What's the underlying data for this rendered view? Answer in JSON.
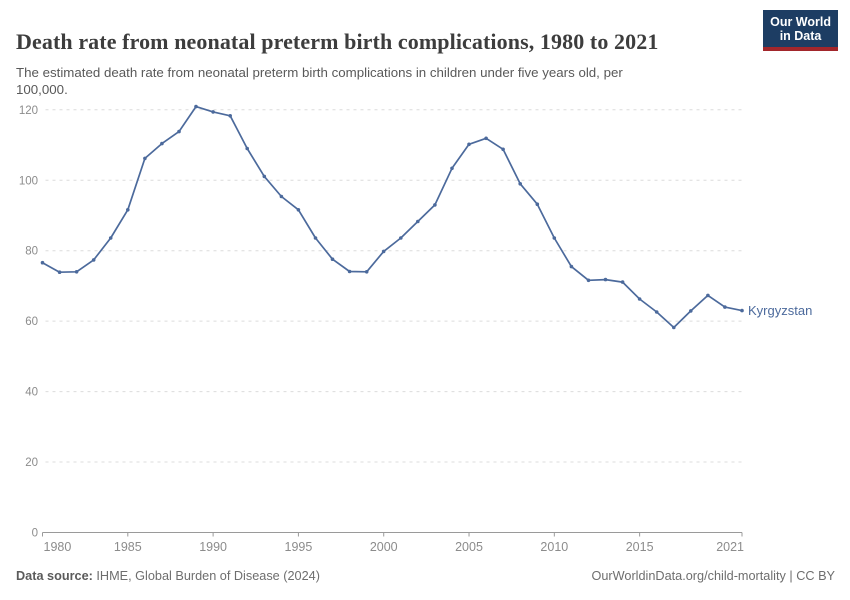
{
  "header": {
    "title": "Death rate from neonatal preterm birth complications, 1980 to 2021",
    "subtitle_line1": "The estimated death rate from neonatal preterm birth complications in children under five years old, per",
    "subtitle_line2": "100,000.",
    "logo": {
      "line1": "Our World",
      "line2": "in Data",
      "bg_color": "#1d3d63",
      "stripe_color": "#a2262b"
    }
  },
  "chart_data": {
    "type": "line",
    "title": "Death rate from neonatal preterm birth complications, 1980 to 2021",
    "entity_label": "Kyrgyzstan",
    "x": [
      1980,
      1981,
      1982,
      1983,
      1984,
      1985,
      1986,
      1987,
      1988,
      1989,
      1990,
      1991,
      1992,
      1993,
      1994,
      1995,
      1996,
      1997,
      1998,
      1999,
      2000,
      2001,
      2002,
      2003,
      2004,
      2005,
      2006,
      2007,
      2008,
      2009,
      2010,
      2011,
      2012,
      2013,
      2014,
      2015,
      2016,
      2017,
      2018,
      2019,
      2020,
      2021
    ],
    "series": [
      {
        "name": "Kyrgyzstan",
        "color": "#4c6a9c",
        "values": [
          76.6,
          73.9,
          74.0,
          77.4,
          83.6,
          91.6,
          106.2,
          110.4,
          113.8,
          120.9,
          119.4,
          118.3,
          109.0,
          101.1,
          95.4,
          91.6,
          83.6,
          77.6,
          74.1,
          74.0,
          79.8,
          83.6,
          88.3,
          93.0,
          103.4,
          110.2,
          111.9,
          108.8,
          99.0,
          93.2,
          83.6,
          75.5,
          71.6,
          71.8,
          71.1,
          66.3,
          62.6,
          58.2,
          62.9,
          67.3,
          64.0,
          63.0
        ]
      }
    ],
    "xlim": [
      1980,
      2021
    ],
    "ylim": [
      0,
      120
    ],
    "yticks": [
      0,
      20,
      40,
      60,
      80,
      100,
      120
    ],
    "xticks": [
      1980,
      1985,
      1990,
      1995,
      2000,
      2005,
      2010,
      2015,
      2021
    ],
    "grid": "horizontal-dashed",
    "legend_position": "end-of-line-label",
    "marker": "circle",
    "colors": {
      "gridline": "#dcdcdc",
      "axis": "#9a9a9a",
      "tick_label": "#8c8c8c"
    }
  },
  "footer": {
    "source_label": "Data source:",
    "source_text": " IHME, Global Burden of Disease (2024)",
    "credit": "OurWorldinData.org/child-mortality | CC BY"
  }
}
